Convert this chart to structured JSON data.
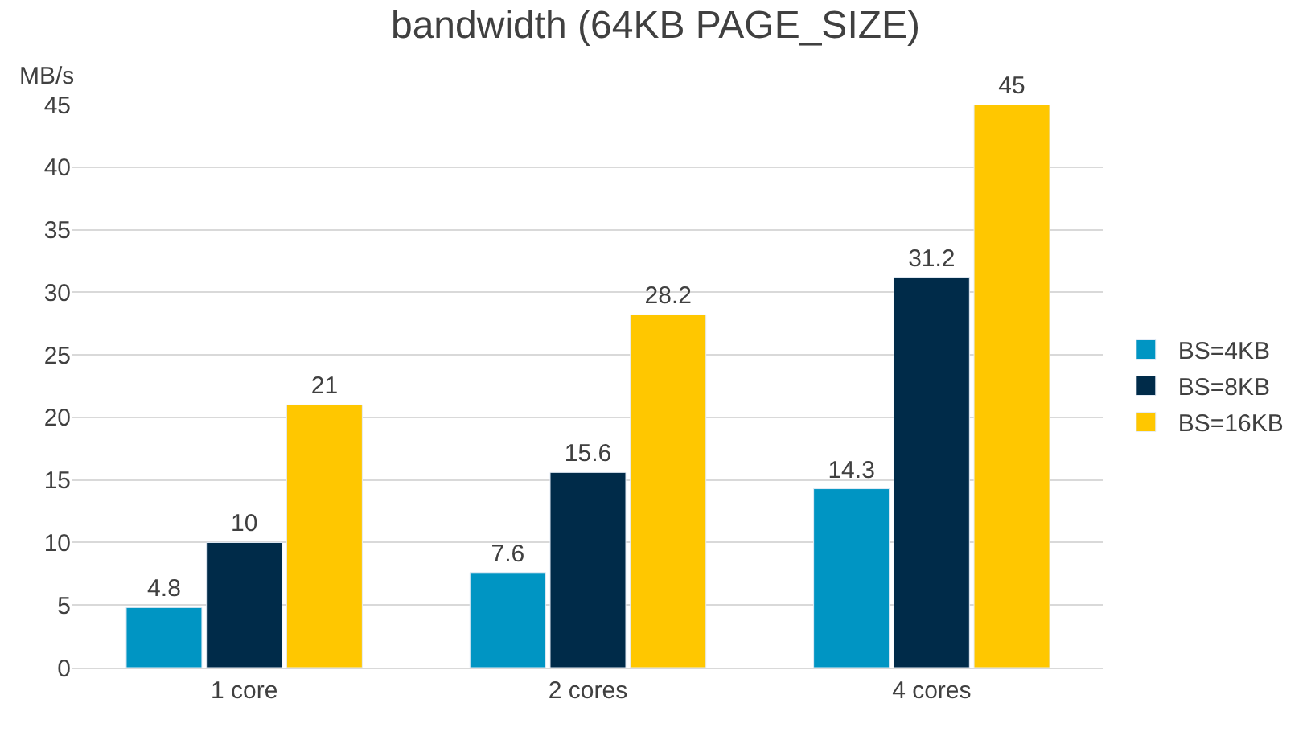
{
  "chart_data": {
    "type": "bar",
    "title": "bandwidth (64KB PAGE_SIZE)",
    "ylabel": "MB/s",
    "categories": [
      "1 core",
      "2 cores",
      "4 cores"
    ],
    "series": [
      {
        "name": "BS=4KB",
        "color": "#0095c3",
        "values": [
          4.8,
          7.6,
          14.3
        ]
      },
      {
        "name": "BS=8KB",
        "color": "#002b49",
        "values": [
          10,
          15.6,
          31.2
        ]
      },
      {
        "name": "BS=16KB",
        "color": "#ffc700",
        "values": [
          21,
          28.2,
          45
        ]
      }
    ],
    "ylim": [
      0,
      45
    ],
    "yticks": [
      0,
      5,
      10,
      15,
      20,
      25,
      30,
      35,
      40,
      45
    ],
    "grid": "y",
    "legend": "right",
    "data_labels": true
  }
}
